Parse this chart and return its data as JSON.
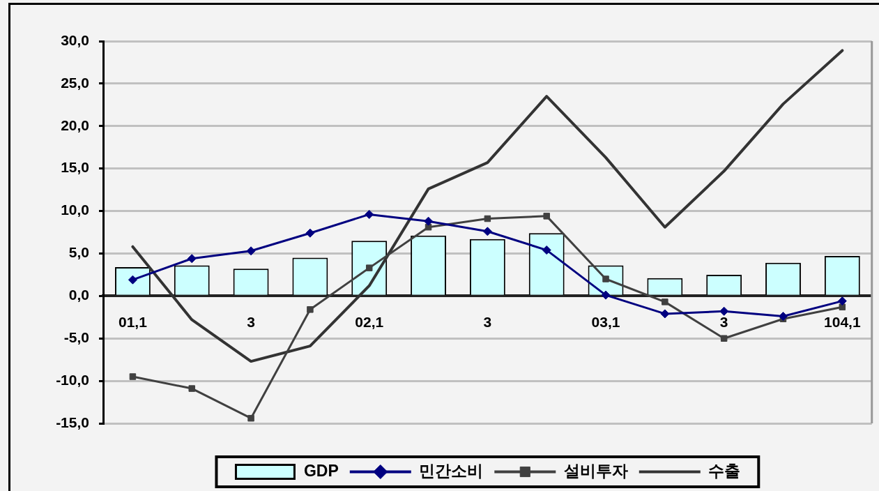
{
  "chart_data": {
    "type": "bar",
    "categories": [
      "01,1",
      null,
      "3",
      null,
      "02,1",
      null,
      "3",
      null,
      "03,1",
      null,
      "3",
      null,
      "104,1"
    ],
    "series": [
      {
        "name": "GDP",
        "color": "#ccffff",
        "values": [
          3.4,
          3.6,
          3.2,
          4.5,
          6.5,
          7.1,
          6.7,
          7.4,
          3.6,
          2.1,
          2.5,
          3.9,
          4.7
        ]
      },
      {
        "name": "민간소비",
        "type": "line",
        "color": "#000080",
        "marker": "diamond",
        "values": [
          1.9,
          4.4,
          5.3,
          7.4,
          9.6,
          8.8,
          7.6,
          5.4,
          0.1,
          -2.1,
          -1.8,
          -2.4,
          -0.6
        ]
      },
      {
        "name": "설비투자",
        "type": "line",
        "color": "#404040",
        "marker": "square",
        "values": [
          -9.5,
          -10.9,
          -14.4,
          -1.6,
          3.3,
          8.1,
          9.1,
          9.4,
          2.0,
          -0.7,
          -5.0,
          -2.7,
          -1.3
        ]
      },
      {
        "name": "수출",
        "type": "line",
        "color": "#333333",
        "marker": "none",
        "values": [
          5.8,
          -2.8,
          -7.7,
          -5.9,
          1.2,
          12.6,
          15.7,
          23.5,
          16.3,
          8.1,
          14.7,
          22.6,
          28.9
        ]
      }
    ],
    "ylim": [
      -15,
      30
    ],
    "yticks": [
      {
        "value": -15,
        "label": "-15,0"
      },
      {
        "value": -10,
        "label": "-10,0"
      },
      {
        "value": -5,
        "label": "-5,0"
      },
      {
        "value": 0,
        "label": "0,0"
      },
      {
        "value": 5,
        "label": "5,0"
      },
      {
        "value": 10,
        "label": "10,0"
      },
      {
        "value": 15,
        "label": "15,0"
      },
      {
        "value": 20,
        "label": "20,0"
      },
      {
        "value": 25,
        "label": "25,0"
      },
      {
        "value": 30,
        "label": "30,0"
      }
    ],
    "grid": "y",
    "legend": "bottom"
  }
}
